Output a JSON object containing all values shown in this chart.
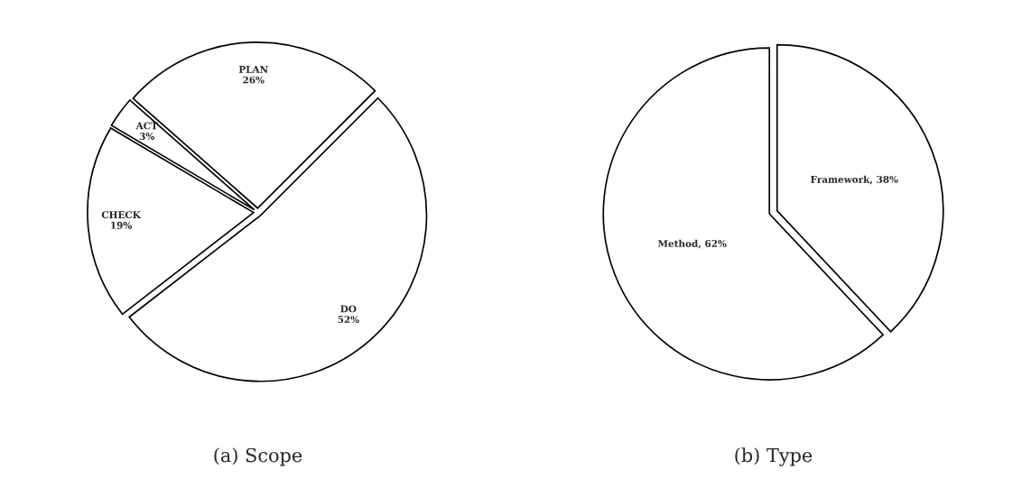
{
  "chart_data": [
    {
      "type": "pie",
      "title": "(a) Scope",
      "categories": [
        "PLAN",
        "ACT",
        "CHECK",
        "DO"
      ],
      "values": [
        26,
        3,
        19,
        52
      ],
      "colors": [
        "#ffffff",
        "#ffffff",
        "#ffffff",
        "#ffffff"
      ],
      "value_labels": [
        "26%",
        "3%",
        "19%",
        "52%"
      ]
    },
    {
      "type": "pie",
      "title": "(b) Type",
      "categories": [
        "Framework",
        "Method"
      ],
      "values": [
        38,
        62
      ],
      "colors": [
        "#ffffff",
        "#ffffff"
      ],
      "value_labels": [
        "38%",
        "62%"
      ]
    }
  ]
}
